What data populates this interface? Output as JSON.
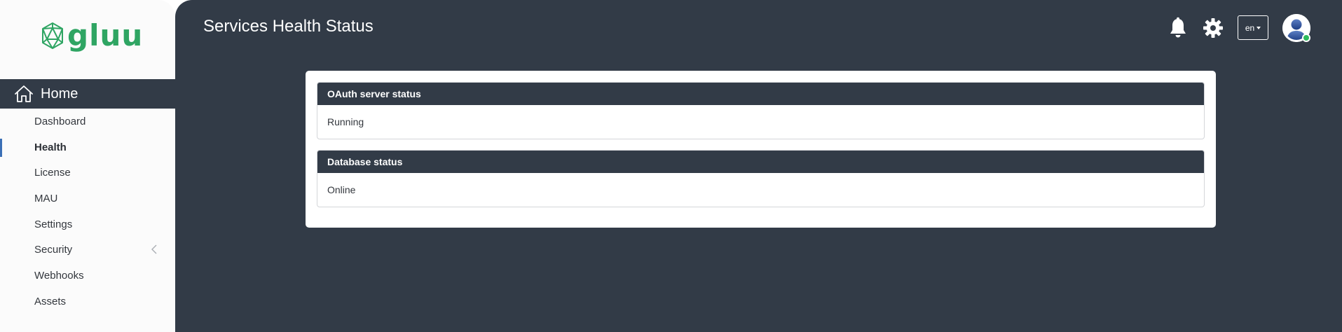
{
  "sidebar": {
    "logo_text": "gluu",
    "home_label": "Home",
    "items": [
      {
        "label": "Dashboard"
      },
      {
        "label": "Health"
      },
      {
        "label": "License"
      },
      {
        "label": "MAU"
      },
      {
        "label": "Settings"
      },
      {
        "label": "Security"
      },
      {
        "label": "Webhooks"
      },
      {
        "label": "Assets"
      }
    ],
    "active_item": "Health"
  },
  "header": {
    "title": "Services Health Status",
    "language": "en",
    "icons": [
      "bell-icon",
      "gear-icon"
    ]
  },
  "statuses": [
    {
      "title": "OAuth server status",
      "value": "Running"
    },
    {
      "title": "Database status",
      "value": "Online"
    }
  ],
  "colors": {
    "brand": "#2fa563",
    "dark": "#323b47",
    "active_indicator": "#3b6fb6",
    "online_dot": "#2dbb5d"
  }
}
